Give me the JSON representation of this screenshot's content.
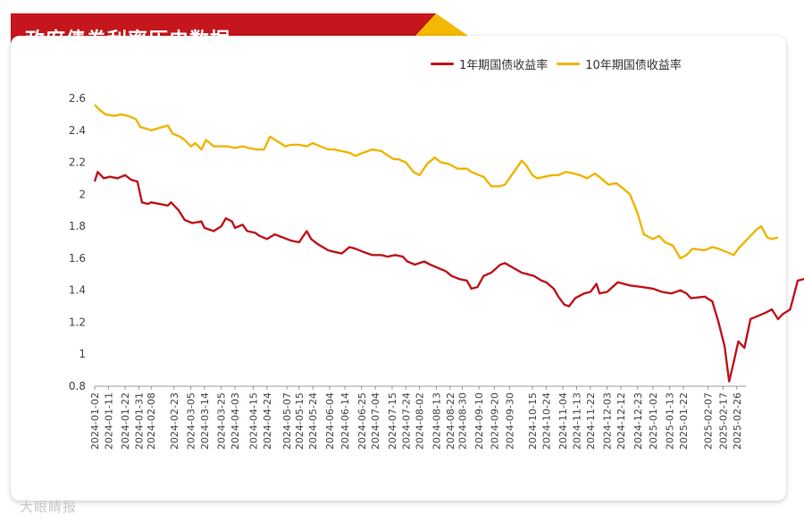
{
  "header": {
    "title": "政府债券利率历史数据"
  },
  "watermark": "大眼睛报",
  "colors": {
    "banner_red": "#c4161c",
    "banner_gold": "#f5b800",
    "series_1y": "#c0141c",
    "series_10y": "#f0b400"
  },
  "chart_data": {
    "type": "line",
    "title": "政府债券利率历史数据",
    "ylim": [
      0.8,
      2.6
    ],
    "yticks": [
      0.8,
      1,
      1.2,
      1.4,
      1.6,
      1.8,
      2,
      2.2,
      2.4,
      2.6
    ],
    "grid": false,
    "legend_position": "top-right",
    "x_start": "2024-01-02",
    "x_end": "2025-03-04",
    "xtick_labels": [
      "2024-01-02",
      "2024-01-11",
      "2024-01-22",
      "2024-01-31",
      "2024-02-08",
      "2024-02-23",
      "2024-03-05",
      "2024-03-14",
      "2024-03-25",
      "2024-04-03",
      "2024-04-15",
      "2024-04-24",
      "2024-05-07",
      "2024-05-15",
      "2024-05-24",
      "2024-06-04",
      "2024-06-14",
      "2024-06-25",
      "2024-07-04",
      "2024-07-15",
      "2024-07-24",
      "2024-08-02",
      "2024-08-13",
      "2024-08-22",
      "2024-08-30",
      "2024-09-10",
      "2024-09-20",
      "2024-09-30",
      "2024-10-15",
      "2024-10-24",
      "2024-11-04",
      "2024-11-13",
      "2024-11-22",
      "2024-12-03",
      "2024-12-12",
      "2024-12-23",
      "2025-01-02",
      "2025-01-13",
      "2025-01-22",
      "2025-02-07",
      "2025-02-17",
      "2025-02-26"
    ],
    "series": [
      {
        "name": "1年期国债收益率",
        "color": "#c0141c",
        "points": [
          [
            "2024-01-02",
            2.08
          ],
          [
            "2024-01-04",
            2.14
          ],
          [
            "2024-01-08",
            2.1
          ],
          [
            "2024-01-12",
            2.11
          ],
          [
            "2024-01-17",
            2.1
          ],
          [
            "2024-01-22",
            2.12
          ],
          [
            "2024-01-26",
            2.09
          ],
          [
            "2024-01-30",
            2.08
          ],
          [
            "2024-02-02",
            1.95
          ],
          [
            "2024-02-06",
            1.94
          ],
          [
            "2024-02-08",
            1.95
          ],
          [
            "2024-02-19",
            1.93
          ],
          [
            "2024-02-21",
            1.95
          ],
          [
            "2024-02-26",
            1.9
          ],
          [
            "2024-03-01",
            1.84
          ],
          [
            "2024-03-06",
            1.82
          ],
          [
            "2024-03-12",
            1.83
          ],
          [
            "2024-03-14",
            1.79
          ],
          [
            "2024-03-20",
            1.77
          ],
          [
            "2024-03-25",
            1.8
          ],
          [
            "2024-03-28",
            1.85
          ],
          [
            "2024-04-01",
            1.83
          ],
          [
            "2024-04-03",
            1.79
          ],
          [
            "2024-04-08",
            1.81
          ],
          [
            "2024-04-11",
            1.77
          ],
          [
            "2024-04-16",
            1.76
          ],
          [
            "2024-04-19",
            1.74
          ],
          [
            "2024-04-24",
            1.72
          ],
          [
            "2024-04-29",
            1.75
          ],
          [
            "2024-05-07",
            1.72
          ],
          [
            "2024-05-10",
            1.71
          ],
          [
            "2024-05-15",
            1.7
          ],
          [
            "2024-05-20",
            1.77
          ],
          [
            "2024-05-23",
            1.72
          ],
          [
            "2024-05-27",
            1.69
          ],
          [
            "2024-06-03",
            1.65
          ],
          [
            "2024-06-07",
            1.64
          ],
          [
            "2024-06-12",
            1.63
          ],
          [
            "2024-06-17",
            1.67
          ],
          [
            "2024-06-21",
            1.66
          ],
          [
            "2024-06-26",
            1.64
          ],
          [
            "2024-07-02",
            1.62
          ],
          [
            "2024-07-08",
            1.62
          ],
          [
            "2024-07-12",
            1.61
          ],
          [
            "2024-07-17",
            1.62
          ],
          [
            "2024-07-22",
            1.61
          ],
          [
            "2024-07-25",
            1.58
          ],
          [
            "2024-07-30",
            1.56
          ],
          [
            "2024-08-05",
            1.58
          ],
          [
            "2024-08-09",
            1.56
          ],
          [
            "2024-08-14",
            1.54
          ],
          [
            "2024-08-19",
            1.52
          ],
          [
            "2024-08-23",
            1.49
          ],
          [
            "2024-08-28",
            1.47
          ],
          [
            "2024-09-02",
            1.46
          ],
          [
            "2024-09-05",
            1.41
          ],
          [
            "2024-09-09",
            1.42
          ],
          [
            "2024-09-13",
            1.49
          ],
          [
            "2024-09-18",
            1.51
          ],
          [
            "2024-09-24",
            1.56
          ],
          [
            "2024-09-27",
            1.57
          ],
          [
            "2024-10-08",
            1.51
          ],
          [
            "2024-10-12",
            1.5
          ],
          [
            "2024-10-16",
            1.49
          ],
          [
            "2024-10-21",
            1.46
          ],
          [
            "2024-10-24",
            1.45
          ],
          [
            "2024-10-29",
            1.41
          ],
          [
            "2024-11-01",
            1.36
          ],
          [
            "2024-11-05",
            1.31
          ],
          [
            "2024-11-08",
            1.3
          ],
          [
            "2024-11-12",
            1.35
          ],
          [
            "2024-11-18",
            1.38
          ],
          [
            "2024-11-22",
            1.39
          ],
          [
            "2024-11-26",
            1.44
          ],
          [
            "2024-11-28",
            1.38
          ],
          [
            "2024-12-03",
            1.39
          ],
          [
            "2024-12-10",
            1.45
          ],
          [
            "2024-12-18",
            1.43
          ],
          [
            "2024-12-26",
            1.42
          ],
          [
            "2025-01-02",
            1.41
          ],
          [
            "2025-01-08",
            1.39
          ],
          [
            "2025-01-14",
            1.38
          ],
          [
            "2025-01-20",
            1.4
          ],
          [
            "2025-01-24",
            1.38
          ],
          [
            "2025-01-27",
            1.35
          ],
          [
            "2025-02-05",
            1.36
          ],
          [
            "2025-02-10",
            1.33
          ],
          [
            "2025-02-14",
            1.2
          ],
          [
            "2025-02-18",
            1.05
          ],
          [
            "2025-02-21",
            0.83
          ],
          [
            "2025-02-24",
            0.95
          ],
          [
            "2025-02-27",
            1.08
          ],
          [
            "2025-03-03",
            1.04
          ],
          [
            "2025-03-07",
            1.22
          ],
          [
            "2025-03-12",
            1.24
          ],
          [
            "2025-03-17",
            1.26
          ],
          [
            "2025-03-21",
            1.28
          ],
          [
            "2025-03-25",
            1.22
          ],
          [
            "2025-03-28",
            1.25
          ],
          [
            "2025-04-02",
            1.28
          ],
          [
            "2025-04-07",
            1.46
          ],
          [
            "2025-04-11",
            1.47
          ],
          [
            "2025-04-16",
            1.48
          ],
          [
            "2025-04-21",
            1.47
          ],
          [
            "2025-04-24",
            1.49
          ],
          [
            "2025-04-28",
            1.45
          ],
          [
            "2025-05-01",
            1.46
          ]
        ]
      },
      {
        "name": "10年期国债收益率",
        "color": "#f0b400",
        "points": [
          [
            "2024-01-02",
            2.56
          ],
          [
            "2024-01-05",
            2.53
          ],
          [
            "2024-01-09",
            2.5
          ],
          [
            "2024-01-15",
            2.49
          ],
          [
            "2024-01-19",
            2.5
          ],
          [
            "2024-01-24",
            2.49
          ],
          [
            "2024-01-29",
            2.47
          ],
          [
            "2024-02-01",
            2.42
          ],
          [
            "2024-02-05",
            2.41
          ],
          [
            "2024-02-08",
            2.4
          ],
          [
            "2024-02-19",
            2.43
          ],
          [
            "2024-02-22",
            2.38
          ],
          [
            "2024-02-27",
            2.36
          ],
          [
            "2024-03-01",
            2.34
          ],
          [
            "2024-03-05",
            2.3
          ],
          [
            "2024-03-08",
            2.32
          ],
          [
            "2024-03-12",
            2.28
          ],
          [
            "2024-03-15",
            2.34
          ],
          [
            "2024-03-20",
            2.3
          ],
          [
            "2024-03-25",
            2.3
          ],
          [
            "2024-03-29",
            2.3
          ],
          [
            "2024-04-03",
            2.29
          ],
          [
            "2024-04-08",
            2.3
          ],
          [
            "2024-04-12",
            2.29
          ],
          [
            "2024-04-17",
            2.28
          ],
          [
            "2024-04-22",
            2.28
          ],
          [
            "2024-04-26",
            2.36
          ],
          [
            "2024-05-06",
            2.3
          ],
          [
            "2024-05-10",
            2.31
          ],
          [
            "2024-05-15",
            2.31
          ],
          [
            "2024-05-20",
            2.3
          ],
          [
            "2024-05-24",
            2.32
          ],
          [
            "2024-05-29",
            2.3
          ],
          [
            "2024-06-03",
            2.28
          ],
          [
            "2024-06-07",
            2.28
          ],
          [
            "2024-06-12",
            2.27
          ],
          [
            "2024-06-17",
            2.26
          ],
          [
            "2024-06-21",
            2.24
          ],
          [
            "2024-06-26",
            2.26
          ],
          [
            "2024-07-02",
            2.28
          ],
          [
            "2024-07-08",
            2.27
          ],
          [
            "2024-07-11",
            2.25
          ],
          [
            "2024-07-16",
            2.22
          ],
          [
            "2024-07-19",
            2.22
          ],
          [
            "2024-07-24",
            2.2
          ],
          [
            "2024-07-29",
            2.14
          ],
          [
            "2024-08-02",
            2.12
          ],
          [
            "2024-08-07",
            2.19
          ],
          [
            "2024-08-12",
            2.23
          ],
          [
            "2024-08-16",
            2.2
          ],
          [
            "2024-08-21",
            2.19
          ],
          [
            "2024-08-27",
            2.16
          ],
          [
            "2024-09-02",
            2.16
          ],
          [
            "2024-09-05",
            2.14
          ],
          [
            "2024-09-10",
            2.12
          ],
          [
            "2024-09-13",
            2.11
          ],
          [
            "2024-09-18",
            2.05
          ],
          [
            "2024-09-23",
            2.05
          ],
          [
            "2024-09-27",
            2.06
          ],
          [
            "2024-10-08",
            2.21
          ],
          [
            "2024-10-11",
            2.18
          ],
          [
            "2024-10-15",
            2.12
          ],
          [
            "2024-10-18",
            2.1
          ],
          [
            "2024-10-23",
            2.11
          ],
          [
            "2024-10-28",
            2.12
          ],
          [
            "2024-11-01",
            2.12
          ],
          [
            "2024-11-06",
            2.14
          ],
          [
            "2024-11-11",
            2.13
          ],
          [
            "2024-11-15",
            2.12
          ],
          [
            "2024-11-20",
            2.1
          ],
          [
            "2024-11-25",
            2.13
          ],
          [
            "2024-11-29",
            2.1
          ],
          [
            "2024-12-04",
            2.06
          ],
          [
            "2024-12-09",
            2.07
          ],
          [
            "2024-12-13",
            2.04
          ],
          [
            "2024-12-18",
            2.0
          ],
          [
            "2024-12-23",
            1.88
          ],
          [
            "2024-12-27",
            1.75
          ],
          [
            "2025-01-02",
            1.72
          ],
          [
            "2025-01-06",
            1.74
          ],
          [
            "2025-01-10",
            1.7
          ],
          [
            "2025-01-15",
            1.68
          ],
          [
            "2025-01-20",
            1.6
          ],
          [
            "2025-01-24",
            1.62
          ],
          [
            "2025-01-28",
            1.66
          ],
          [
            "2025-02-05",
            1.65
          ],
          [
            "2025-02-10",
            1.67
          ],
          [
            "2025-02-14",
            1.66
          ],
          [
            "2025-02-19",
            1.64
          ],
          [
            "2025-02-24",
            1.62
          ],
          [
            "2025-02-27",
            1.66
          ],
          [
            "2025-03-03",
            1.7
          ],
          [
            "2025-03-06",
            1.73
          ],
          [
            "2025-03-11",
            1.78
          ],
          [
            "2025-03-14",
            1.8
          ],
          [
            "2025-03-18",
            1.73
          ],
          [
            "2025-03-21",
            1.72
          ],
          [
            "2025-03-25",
            1.73
          ]
        ]
      }
    ]
  }
}
